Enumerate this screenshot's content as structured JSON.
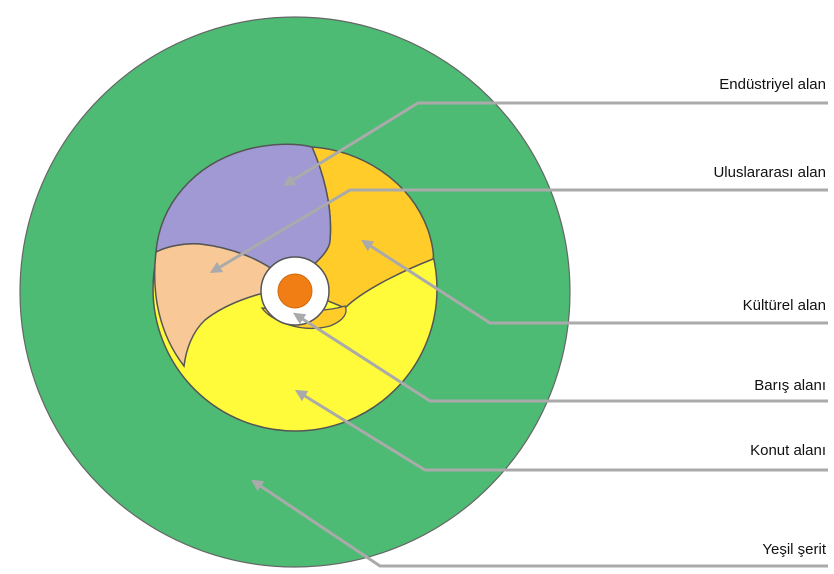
{
  "labels": {
    "industrial": "Endüstriyel alan",
    "international": "Uluslararası alan",
    "cultural": "Kültürel alan",
    "peace": "Barış alanı",
    "residential": "Konut alanı",
    "green": "Yeşil şerit"
  },
  "colors": {
    "green_belt": "#4dbb74",
    "industrial": "#a099d4",
    "international": "#f8c996",
    "cultural": "#ffcc2a",
    "residential": "#fffa3a",
    "peace_ring": "#ffffff",
    "peace_core": "#f07e14",
    "arrow": "#aaaaaa",
    "outline": "#555555"
  }
}
